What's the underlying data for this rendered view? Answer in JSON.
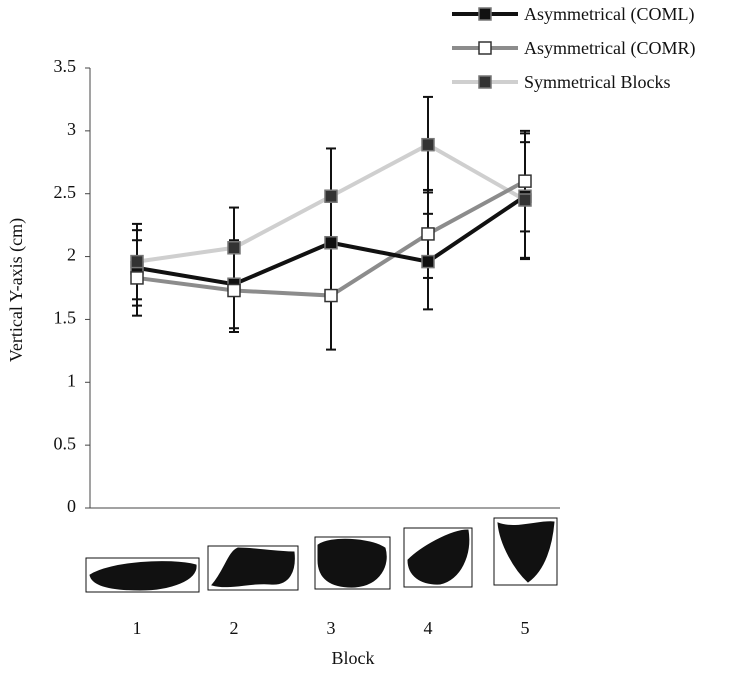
{
  "chart_data": {
    "type": "line",
    "y_label": "Vertical Y-axis (cm)",
    "x_label": "Block",
    "categories": [
      "1",
      "2",
      "3",
      "4",
      "5"
    ],
    "ylim": [
      0,
      3.5
    ],
    "yticks": [
      0,
      0.5,
      1,
      1.5,
      2,
      2.5,
      3,
      3.5
    ],
    "series": [
      {
        "name": "Asymmetrical (COML)",
        "color": "#111111",
        "marker_color": "#111111",
        "values": [
          1.91,
          1.78,
          2.11,
          1.96,
          2.48
        ],
        "errors": [
          0.3,
          0.35,
          0.4,
          0.38,
          0.5
        ]
      },
      {
        "name": "Asymmetrical (COMR)",
        "color": "#8c8c8c",
        "marker_color": "#ffffff",
        "values": [
          1.83,
          1.73,
          1.69,
          2.18,
          2.6
        ],
        "errors": [
          0.3,
          0.33,
          0.43,
          0.35,
          0.4
        ]
      },
      {
        "name": "Symmetrical Blocks",
        "color": "#cfcfcf",
        "marker_color": "#333333",
        "values": [
          1.96,
          2.07,
          2.48,
          2.89,
          2.45
        ],
        "errors": [
          0.3,
          0.32,
          0.38,
          0.38,
          0.46
        ]
      }
    ]
  }
}
